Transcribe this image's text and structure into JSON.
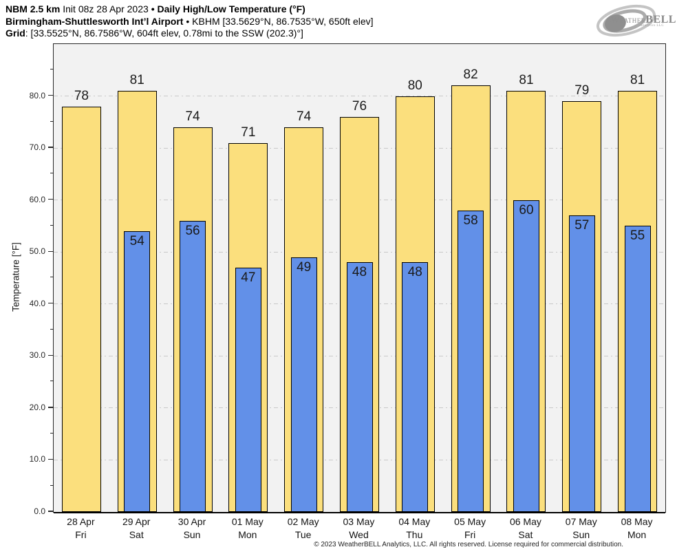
{
  "header": {
    "line1_model": "NBM 2.5 km",
    "line1_init": " Init 08z 28 Apr 2023 ",
    "line1_sep": "•",
    "line1_title": " Daily High/Low Temperature (°F)",
    "line2_station": "Birmingham-Shuttlesworth Int’l Airport",
    "line2_sep": " • ",
    "line2_meta": "KBHM [33.5629°N, 86.7535°W, 650ft elev]",
    "line3_label": "Grid",
    "line3_meta": ": [33.5525°N, 86.7586°W, 604ft elev, 0.78mi to the SSW (202.3)°]"
  },
  "logo": {
    "brand_first": "Weather",
    "brand_second": "BELL",
    "subtitle": "Analytics LLC"
  },
  "chart_data": {
    "type": "bar",
    "title": "Daily High/Low Temperature (°F)",
    "xlabel": "",
    "ylabel": "Temperature [°F]",
    "ylim": [
      0,
      90
    ],
    "yticks_major": [
      0,
      10,
      20,
      30,
      40,
      50,
      60,
      70,
      80
    ],
    "ytick_labels": [
      "0.0",
      "10.0",
      "20.0",
      "30.0",
      "40.0",
      "50.0",
      "60.0",
      "70.0",
      "80.0"
    ],
    "yticks_minor": [
      5,
      15,
      25,
      35,
      45,
      55,
      65,
      75,
      85
    ],
    "grid": "horizontal dash-dot at major ticks",
    "gridline_color": "#c9c9c9",
    "plot_bg": "#f2f2f2",
    "legend_position": "none",
    "categories": [
      "28 Apr",
      "29 Apr",
      "30 Apr",
      "01 May",
      "02 May",
      "03 May",
      "04 May",
      "05 May",
      "06 May",
      "07 May",
      "08 May"
    ],
    "category_days": [
      "Fri",
      "Sat",
      "Sun",
      "Mon",
      "Tue",
      "Wed",
      "Thu",
      "Fri",
      "Sat",
      "Sun",
      "Mon"
    ],
    "series": [
      {
        "name": "Daily High",
        "color": "#fbdf7d",
        "edge_color": "#000000",
        "values": [
          78,
          81,
          74,
          71,
          74,
          76,
          80,
          82,
          81,
          79,
          81
        ]
      },
      {
        "name": "Daily Low",
        "color": "#6290e8",
        "edge_color": "#000000",
        "values": [
          null,
          54,
          56,
          47,
          49,
          48,
          48,
          58,
          60,
          57,
          55
        ]
      }
    ]
  },
  "footer": "© 2023 WeatherBELL Analytics, LLC. All rights reserved. License required for commercial distribution."
}
